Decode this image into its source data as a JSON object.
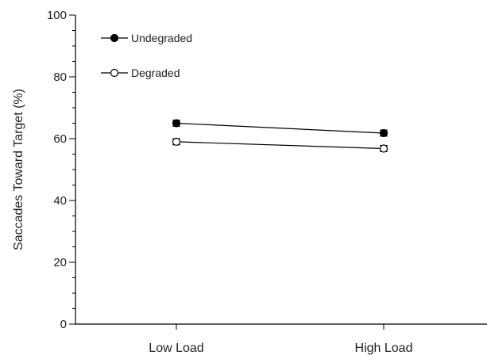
{
  "chart_data": {
    "type": "line",
    "categories": [
      "Low Load",
      "High Load"
    ],
    "ylabel": "Saccades Toward Target (%)",
    "ylim": [
      0,
      100
    ],
    "yticks": [
      0,
      20,
      40,
      60,
      80,
      100
    ],
    "series": [
      {
        "name": "Undegraded",
        "values": [
          65,
          61.8
        ],
        "errors": [
          1.0,
          1.0
        ],
        "marker": "filled-circle",
        "color": "#000000"
      },
      {
        "name": "Degraded",
        "values": [
          59,
          56.8
        ],
        "errors": [
          1.0,
          1.0
        ],
        "marker": "open-circle",
        "color": "#000000"
      }
    ],
    "legend_placement": "top-left",
    "grid": false
  }
}
